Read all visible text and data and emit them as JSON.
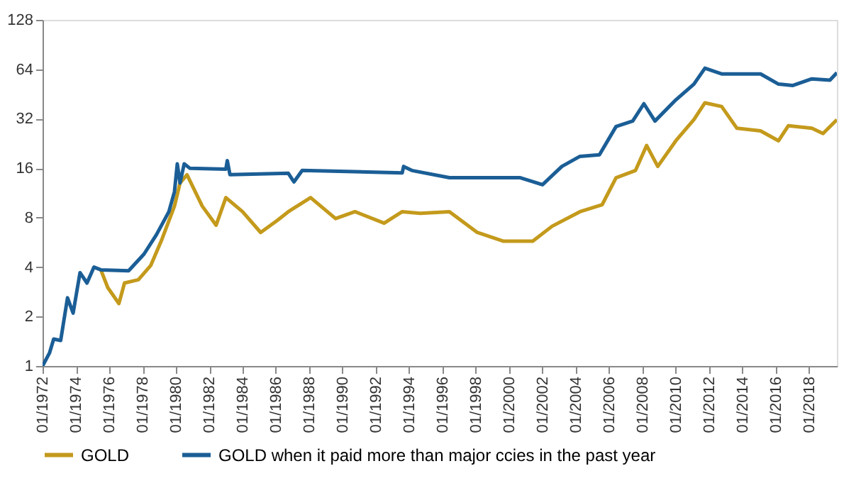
{
  "chart_data": {
    "type": "line",
    "log": "y",
    "legend": "bottom",
    "line_style": "solid",
    "xlim": [
      "1972-01",
      "2019-09"
    ],
    "xticks": [
      {
        "value": "1972-01",
        "label": "01/1972"
      },
      {
        "value": "1974-01",
        "label": "01/1974"
      },
      {
        "value": "1976-01",
        "label": "01/1976"
      },
      {
        "value": "1978-01",
        "label": "01/1978"
      },
      {
        "value": "1980-01",
        "label": "01/1980"
      },
      {
        "value": "1982-01",
        "label": "01/1982"
      },
      {
        "value": "1984-01",
        "label": "01/1984"
      },
      {
        "value": "1986-01",
        "label": "01/1986"
      },
      {
        "value": "1988-01",
        "label": "01/1988"
      },
      {
        "value": "1990-01",
        "label": "01/1990"
      },
      {
        "value": "1992-01",
        "label": "01/1992"
      },
      {
        "value": "1994-01",
        "label": "01/1994"
      },
      {
        "value": "1996-01",
        "label": "01/1996"
      },
      {
        "value": "1998-01",
        "label": "01/1998"
      },
      {
        "value": "2000-01",
        "label": "01/2000"
      },
      {
        "value": "2002-01",
        "label": "01/2002"
      },
      {
        "value": "2004-01",
        "label": "01/2004"
      },
      {
        "value": "2006-01",
        "label": "01/2006"
      },
      {
        "value": "2008-01",
        "label": "01/2008"
      },
      {
        "value": "2010-01",
        "label": "01/2010"
      },
      {
        "value": "2012-01",
        "label": "01/2012"
      },
      {
        "value": "2014-01",
        "label": "01/2014"
      },
      {
        "value": "2016-01",
        "label": "01/2016"
      },
      {
        "value": "2018-01",
        "label": "01/2018"
      }
    ],
    "ylim": [
      1,
      128
    ],
    "yticks": [
      1,
      2,
      4,
      8,
      16,
      32,
      64,
      128
    ],
    "series": [
      {
        "name": "GOLD",
        "color": "#c49a1c",
        "x": [
          "1975-07",
          "1975-12",
          "1976-08",
          "1976-12",
          "1977-10",
          "1978-07",
          "1979-03",
          "1979-12",
          "1980-04",
          "1980-09",
          "1981-08",
          "1982-06",
          "1983-01",
          "1984-01",
          "1985-02",
          "1986-02",
          "1986-10",
          "1988-02",
          "1989-08",
          "1990-10",
          "1992-07",
          "1993-08",
          "1994-09",
          "1996-06",
          "1998-02",
          "1999-09",
          "2001-06",
          "2002-08",
          "2004-04",
          "2005-08",
          "2006-06",
          "2007-08",
          "2008-04",
          "2008-12",
          "2010-01",
          "2011-02",
          "2011-10",
          "2012-10",
          "2013-09",
          "2015-02",
          "2016-03",
          "2016-10",
          "2018-03",
          "2018-11",
          "2019-09"
        ],
        "values": [
          3.85,
          3.0,
          2.4,
          3.2,
          3.35,
          4.1,
          5.9,
          9.4,
          13,
          14.6,
          9.4,
          7.2,
          10.6,
          8.7,
          6.5,
          7.7,
          8.7,
          10.6,
          7.9,
          8.7,
          7.4,
          8.7,
          8.5,
          8.7,
          6.5,
          5.75,
          5.75,
          7.1,
          8.7,
          9.6,
          14,
          15.5,
          22,
          16.4,
          23.5,
          31.6,
          40,
          38,
          28,
          27,
          23.5,
          29,
          28,
          26,
          31.6
        ]
      },
      {
        "name": "GOLD when it paid more than major ccies in the past year",
        "color": "#1b5e96",
        "x": [
          "1972-01",
          "1972-06",
          "1972-09",
          "1973-02",
          "1973-07",
          "1973-11",
          "1974-04",
          "1974-09",
          "1975-02",
          "1975-07",
          "1977-03",
          "1978-02",
          "1978-11",
          "1979-08",
          "1979-12",
          "1980-02",
          "1980-04",
          "1980-07",
          "1980-11",
          "1983-01",
          "1983-02",
          "1983-04",
          "1986-10",
          "1987-02",
          "1987-08",
          "1993-08",
          "1993-09",
          "1994-03",
          "1996-06",
          "2000-09",
          "2002-01",
          "2003-03",
          "2004-04",
          "2005-06",
          "2006-06",
          "2007-06",
          "2008-02",
          "2008-10",
          "2010-01",
          "2011-02",
          "2011-10",
          "2012-10",
          "2015-02",
          "2016-03",
          "2017-01",
          "2018-03",
          "2019-04",
          "2019-09"
        ],
        "values": [
          1.0,
          1.2,
          1.46,
          1.43,
          2.6,
          2.1,
          3.7,
          3.2,
          4.0,
          3.85,
          3.8,
          4.8,
          6.3,
          8.7,
          11.5,
          17,
          13,
          17,
          16,
          15.8,
          17.8,
          14.6,
          14.9,
          13.2,
          15.5,
          15,
          16.4,
          15.5,
          14,
          14,
          12.7,
          16.4,
          18.9,
          19.3,
          28.7,
          31,
          39.5,
          31,
          41.7,
          52,
          65,
          60,
          60,
          52,
          51,
          56,
          55,
          61
        ]
      }
    ]
  }
}
